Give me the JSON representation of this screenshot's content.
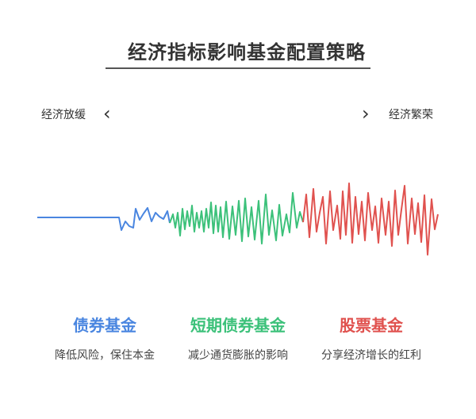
{
  "title": "经济指标影响基金配置策略",
  "scale": {
    "left_label": "经济放缓",
    "right_label": "经济繁荣",
    "left_arrow": "‹",
    "right_arrow": "›"
  },
  "colors": {
    "bond": "#4a86e0",
    "short_bond": "#3cc17a",
    "stock": "#e0524f"
  },
  "funds": [
    {
      "name": "债券基金",
      "desc": "降低风险，保住本金"
    },
    {
      "name": "短期债券基金",
      "desc": "减少通货膨胀的影响"
    },
    {
      "name": "股票基金",
      "desc": "分享经济增长的红利"
    }
  ]
}
